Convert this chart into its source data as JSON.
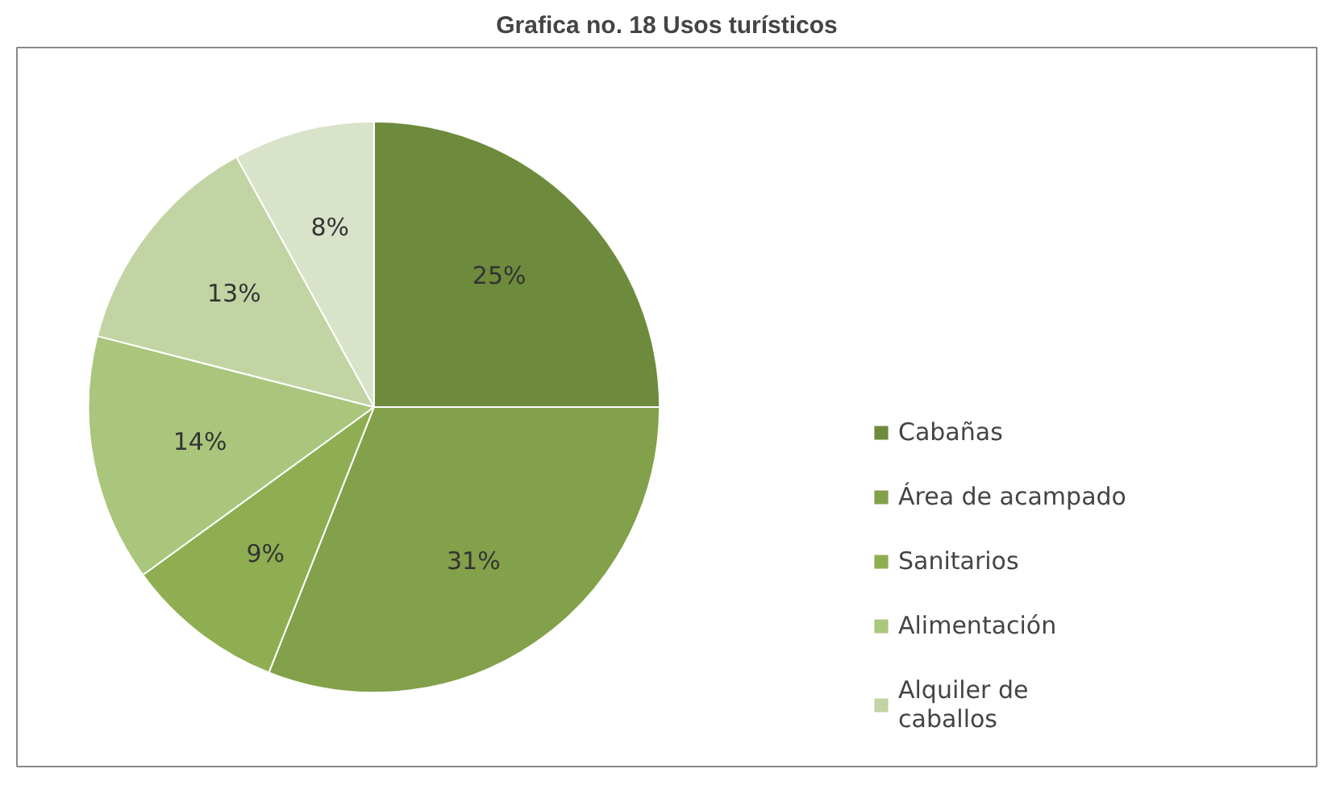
{
  "chart_data": {
    "type": "pie",
    "title": "Grafica no. 18 Usos turísticos",
    "categories": [
      "Cabañas",
      "Área de acampado",
      "Sanitarios",
      "Alimentación",
      "Alquiler de caballos",
      null
    ],
    "values": [
      25,
      31,
      9,
      14,
      13,
      8
    ],
    "colors": [
      "#6e8a3c",
      "#83a04a",
      "#8fae52",
      "#a9c67c",
      "#c3d4a4",
      "#d9e3c9"
    ],
    "value_labels": [
      "25%",
      "31%",
      "9%",
      "14%",
      "13%",
      "8%"
    ],
    "legend": "right"
  }
}
